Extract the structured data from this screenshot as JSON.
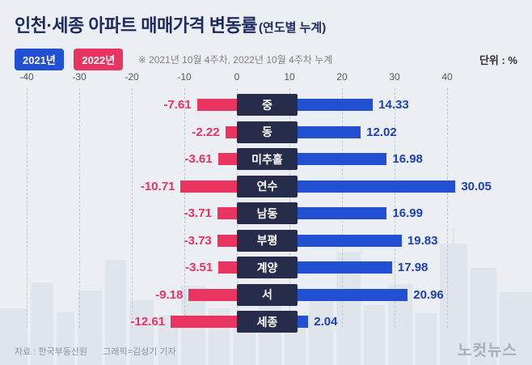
{
  "header": {
    "title": "인천·세종 아파트 매매가격 변동률",
    "title_suffix": "(연도별 누계)"
  },
  "legend": {
    "badge_2021": "2021년",
    "badge_2022": "2022년",
    "note": "※ 2021년 10월 4주차, 2022년 10월 4주차 누계",
    "unit": "단위 : %"
  },
  "footer": {
    "source": "자료 : 한국부동산원",
    "credit": "그래픽=김성기 기자",
    "logo": "노컷뉴스"
  },
  "colors": {
    "background": "#ebeef3",
    "title_navy": "#1c2a5e",
    "blue": "#2150d2",
    "red": "#e8345f",
    "category_box": "#262c4a",
    "positive_label": "#1d41b0",
    "negative_label": "#e8345f",
    "gridline": "#c2c8d3"
  },
  "chart_data": {
    "type": "bar",
    "variant": "diverging-horizontal",
    "title": "인천·세종 아파트 매매가격 변동률 (연도별 누계)",
    "categories": [
      "중",
      "동",
      "미추홀",
      "연수",
      "남동",
      "부평",
      "계양",
      "서",
      "세종"
    ],
    "series": [
      {
        "name": "2021년",
        "color": "#2150d2",
        "values": [
          14.33,
          12.02,
          16.98,
          30.05,
          16.99,
          19.83,
          17.98,
          20.96,
          2.04
        ]
      },
      {
        "name": "2022년",
        "color": "#e8345f",
        "values": [
          -7.61,
          -2.22,
          -3.61,
          -10.71,
          -3.71,
          -3.73,
          -3.51,
          -9.18,
          -12.61
        ]
      }
    ],
    "xlim": [
      -40,
      40
    ],
    "x_ticks": [
      -40,
      -30,
      -20,
      -10,
      0,
      10,
      20,
      30,
      40
    ],
    "grid": "vertical-dashed",
    "unit": "%",
    "legend_position": "top-left"
  }
}
